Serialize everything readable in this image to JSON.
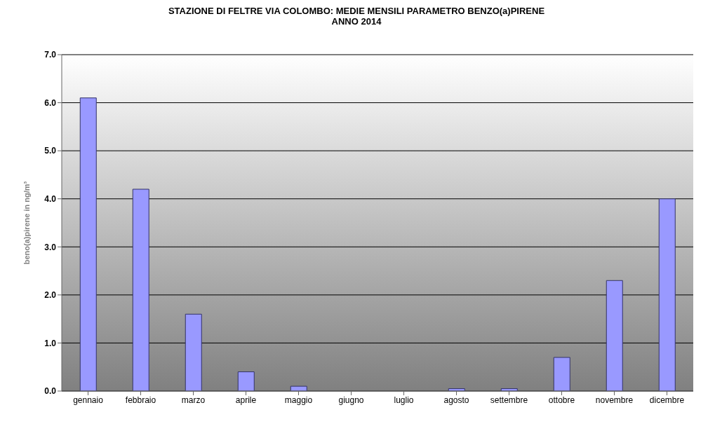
{
  "chart_data": {
    "type": "bar",
    "title": "STAZIONE DI FELTRE VIA COLOMBO: MEDIE MENSILI PARAMETRO BENZO(a)PIRENE",
    "subtitle": "ANNO 2014",
    "ylabel": "beno(a)pirene in ng/m³",
    "categories": [
      "gennaio",
      "febbraio",
      "marzo",
      "aprile",
      "maggio",
      "giugno",
      "luglio",
      "agosto",
      "settembre",
      "ottobre",
      "novembre",
      "dicembre"
    ],
    "values": [
      6.1,
      4.2,
      1.6,
      0.4,
      0.1,
      0.0,
      0.0,
      0.05,
      0.05,
      0.7,
      2.3,
      4.0
    ],
    "color": "#9999ff",
    "ylim": [
      0,
      7
    ],
    "yticks": [
      {
        "value": 0,
        "label": "0.0"
      },
      {
        "value": 1,
        "label": "1.0"
      },
      {
        "value": 2,
        "label": "2.0"
      },
      {
        "value": 3,
        "label": "3.0"
      },
      {
        "value": 4,
        "label": "4.0"
      },
      {
        "value": 5,
        "label": "5.0"
      },
      {
        "value": 6,
        "label": "6.0"
      },
      {
        "value": 7,
        "label": "7.0"
      }
    ],
    "grid": "y"
  }
}
